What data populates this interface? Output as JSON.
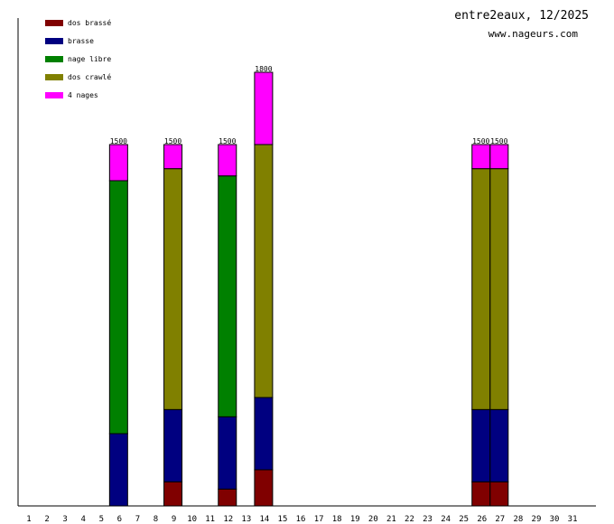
{
  "header": {
    "title": "entre2eaux, 12/2025",
    "site": "www.nageurs.com"
  },
  "chart_data": {
    "type": "bar",
    "stacked": true,
    "title": "entre2eaux, 12/2025",
    "xlabel": "",
    "ylabel": "",
    "ylim": [
      0,
      1875
    ],
    "categories": [
      "1",
      "2",
      "3",
      "4",
      "5",
      "6",
      "7",
      "8",
      "9",
      "10",
      "11",
      "12",
      "13",
      "14",
      "15",
      "16",
      "17",
      "18",
      "19",
      "20",
      "21",
      "22",
      "23",
      "24",
      "25",
      "26",
      "27",
      "28",
      "29",
      "30",
      "31"
    ],
    "series": [
      {
        "name": "dos brassé",
        "color": "#800000",
        "values": [
          0,
          0,
          0,
          0,
          0,
          0,
          0,
          0,
          100,
          0,
          0,
          70,
          0,
          150,
          0,
          0,
          0,
          0,
          0,
          0,
          0,
          0,
          0,
          0,
          0,
          100,
          100,
          0,
          0,
          0,
          0
        ]
      },
      {
        "name": "brasse",
        "color": "#000080",
        "values": [
          0,
          0,
          0,
          0,
          0,
          300,
          0,
          0,
          300,
          0,
          0,
          300,
          0,
          300,
          0,
          0,
          0,
          0,
          0,
          0,
          0,
          0,
          0,
          0,
          0,
          300,
          300,
          0,
          0,
          0,
          0
        ]
      },
      {
        "name": "nage libre",
        "color": "#008000",
        "values": [
          0,
          0,
          0,
          0,
          0,
          1050,
          0,
          0,
          0,
          0,
          0,
          1000,
          0,
          0,
          0,
          0,
          0,
          0,
          0,
          0,
          0,
          0,
          0,
          0,
          0,
          0,
          0,
          0,
          0,
          0,
          0
        ]
      },
      {
        "name": "dos crawlé",
        "color": "#808000",
        "values": [
          0,
          0,
          0,
          0,
          0,
          0,
          0,
          0,
          1000,
          0,
          0,
          0,
          0,
          1050,
          0,
          0,
          0,
          0,
          0,
          0,
          0,
          0,
          0,
          0,
          0,
          1000,
          1000,
          0,
          0,
          0,
          0
        ]
      },
      {
        "name": "4 nages",
        "color": "#ff00ff",
        "values": [
          0,
          0,
          0,
          0,
          0,
          150,
          0,
          0,
          100,
          0,
          0,
          130,
          0,
          300,
          0,
          0,
          0,
          0,
          0,
          0,
          0,
          0,
          0,
          0,
          0,
          100,
          100,
          0,
          0,
          0,
          0
        ]
      }
    ],
    "totals_labels": {
      "6": "1500",
      "9": "1500",
      "12": "1500",
      "14": "1800",
      "26": "1500",
      "27": "1500"
    },
    "grid": false,
    "legend": "top-left"
  }
}
